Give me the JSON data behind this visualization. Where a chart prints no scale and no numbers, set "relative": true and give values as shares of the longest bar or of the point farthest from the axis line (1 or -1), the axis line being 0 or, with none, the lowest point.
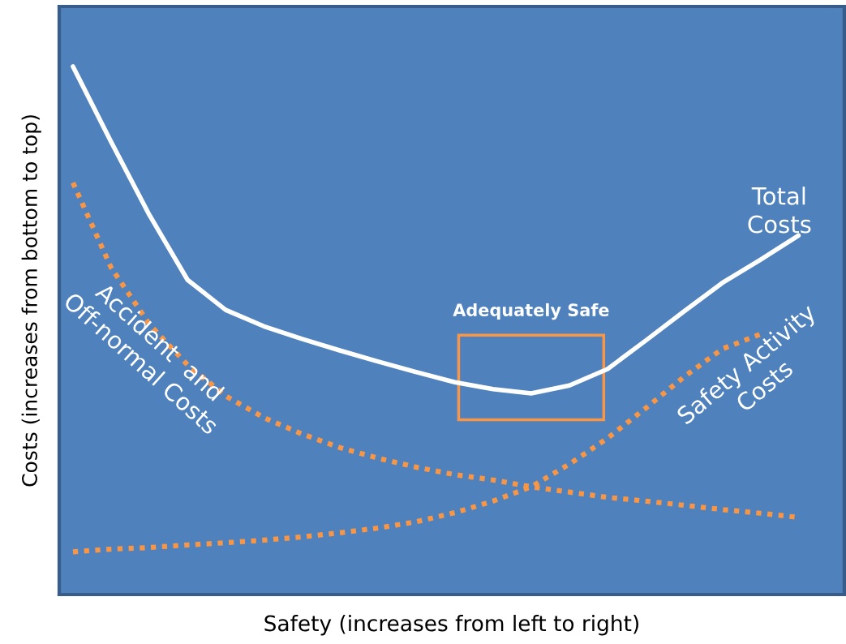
{
  "chart_data": {
    "type": "line",
    "relative": true,
    "xlabel": "Safety (increases from left to right)",
    "ylabel": "Costs (increases from bottom to top)",
    "categories": [
      null,
      null,
      null,
      null,
      null,
      null,
      null,
      null,
      null,
      null,
      null,
      null,
      null,
      null,
      null,
      null,
      null,
      null,
      null,
      null
    ],
    "series": [
      {
        "name": "Total\nCosts",
        "color": "#ffffff",
        "line_style": "solid",
        "values": [
          1.0,
          0.857,
          0.719,
          0.596,
          0.539,
          0.508,
          0.484,
          0.462,
          0.441,
          0.421,
          0.402,
          0.389,
          0.381,
          0.396,
          0.427,
          0.481,
          0.536,
          0.59,
          0.634,
          0.68
        ]
      },
      {
        "name": "Accident  and\nOff-normal Costs",
        "color": "#f79646",
        "line_style": "dotted",
        "values": [
          0.78,
          0.619,
          0.512,
          0.435,
          0.376,
          0.335,
          0.304,
          0.278,
          0.258,
          0.241,
          0.227,
          0.217,
          0.204,
          0.194,
          0.184,
          0.177,
          0.169,
          0.161,
          0.154,
          0.146
        ]
      },
      {
        "name": "Safety Activity\nCosts",
        "color": "#f79646",
        "line_style": "dotted",
        "values": [
          0.081,
          0.086,
          0.089,
          0.094,
          0.098,
          0.103,
          0.109,
          0.117,
          0.126,
          0.138,
          0.155,
          0.177,
          0.204,
          0.247,
          0.296,
          0.353,
          0.412,
          0.465,
          0.493,
          null
        ]
      }
    ],
    "annotations": [
      "Adequately Safe"
    ],
    "legend": false
  }
}
